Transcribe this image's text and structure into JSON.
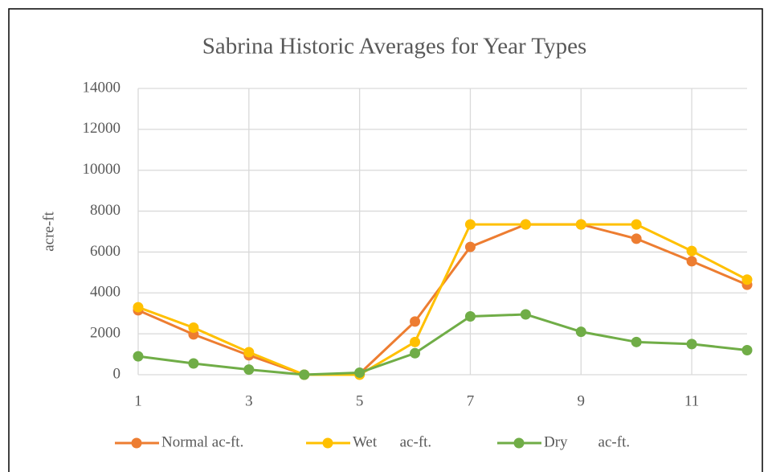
{
  "chart_data": {
    "type": "line",
    "title": "Sabrina Historic Averages for Year Types",
    "y_label": "acre-ft",
    "x": [
      1,
      2,
      3,
      4,
      5,
      6,
      7,
      8,
      9,
      10,
      11,
      12
    ],
    "xlim": [
      1,
      12
    ],
    "xticks": [
      1,
      3,
      5,
      7,
      9,
      11
    ],
    "ylim": [
      0,
      14000
    ],
    "yticks": [
      0,
      2000,
      4000,
      6000,
      8000,
      10000,
      12000,
      14000
    ],
    "grid": true,
    "legend": "bottom",
    "series": [
      {
        "name": "Normal ac-ft.",
        "color": "#ED7D31",
        "values": [
          3150,
          1970,
          950,
          0,
          50,
          2600,
          6250,
          7350,
          7350,
          6650,
          5550,
          4400
        ]
      },
      {
        "name": "Wet      ac-ft.",
        "color": "#FFC000",
        "values": [
          3300,
          2300,
          1100,
          0,
          0,
          1600,
          7350,
          7350,
          7350,
          7350,
          6050,
          4650
        ]
      },
      {
        "name": "Dry        ac-ft.",
        "color": "#70AD47",
        "values": [
          900,
          550,
          250,
          0,
          100,
          1050,
          2850,
          2950,
          2100,
          1600,
          1500,
          1200
        ]
      }
    ]
  }
}
